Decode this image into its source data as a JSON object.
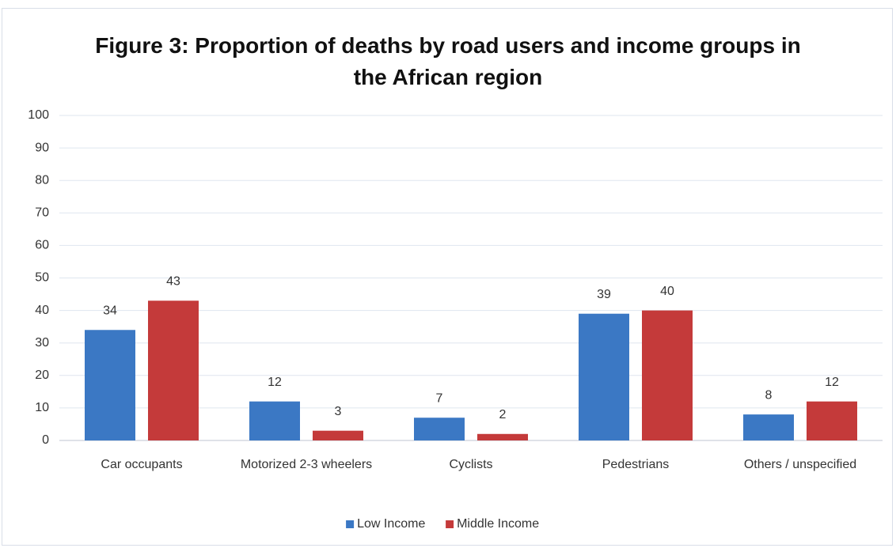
{
  "chart_data": {
    "type": "bar",
    "title": "Figure 3: Proportion of deaths by road users and income groups in the African region",
    "categories": [
      "Car occupants",
      "Motorized 2-3 wheelers",
      "Cyclists",
      "Pedestrians",
      "Others / unspecified"
    ],
    "series": [
      {
        "name": "Low Income",
        "color": "#3b78c4",
        "values": [
          34,
          12,
          7,
          39,
          8
        ]
      },
      {
        "name": "Middle Income",
        "color": "#c43a3a",
        "values": [
          43,
          3,
          2,
          40,
          12
        ]
      }
    ],
    "ylim": [
      0,
      100
    ],
    "yticks": [
      0,
      10,
      20,
      30,
      40,
      50,
      60,
      70,
      80,
      90,
      100
    ],
    "grid": true,
    "legend": "bottom"
  }
}
